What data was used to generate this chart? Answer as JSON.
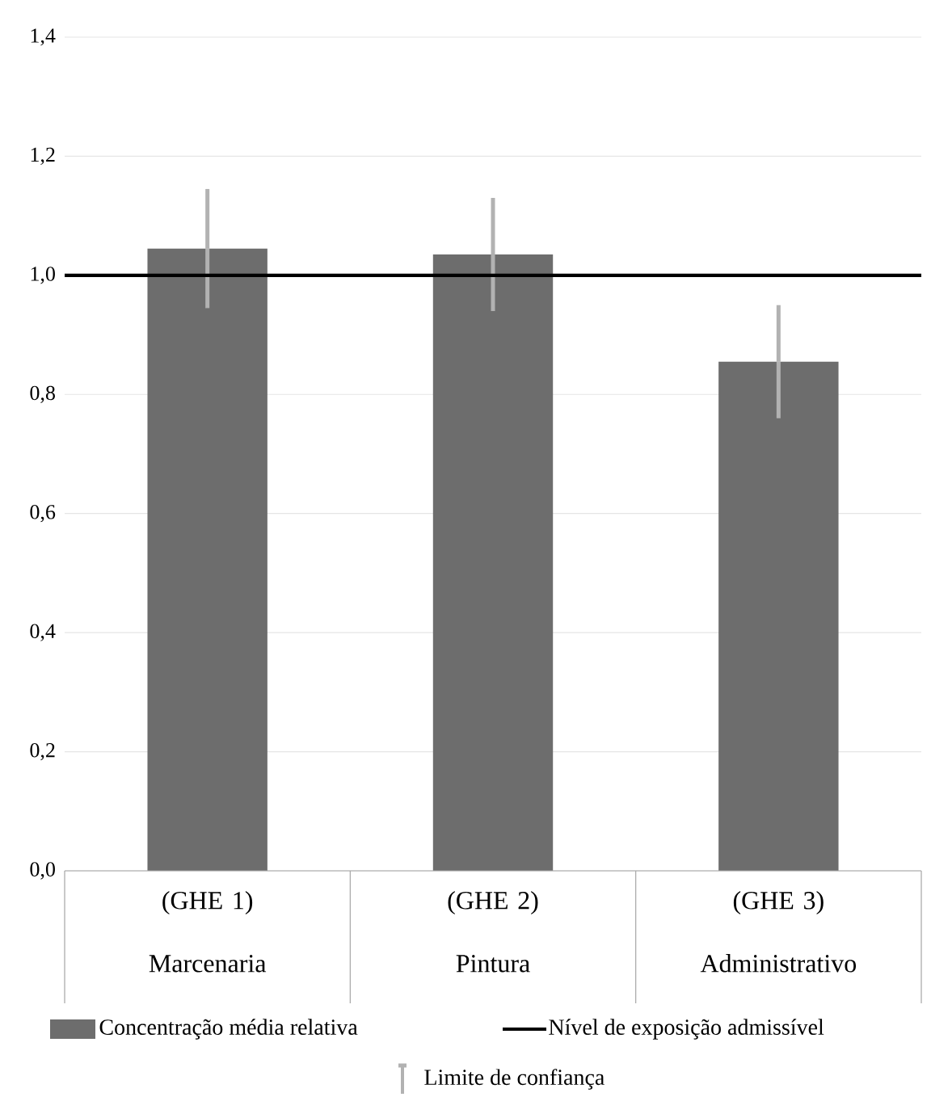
{
  "chart_data": {
    "type": "bar",
    "categories": [
      "(GHE 1) Marcenaria",
      "(GHE 2) Pintura",
      "(GHE 3) Administrativo"
    ],
    "series": [
      {
        "name": "Concentração média relativa",
        "color": "#6d6d6d",
        "values": [
          1.045,
          1.035,
          0.855
        ],
        "errors": [
          0.1,
          0.095,
          0.095
        ]
      }
    ],
    "ylim": [
      0,
      1.4
    ],
    "yticks": [
      {
        "value": 0,
        "label": "0,0"
      },
      {
        "value": 0.2,
        "label": "0,2"
      },
      {
        "value": 0.4,
        "label": "0,4"
      },
      {
        "value": 0.6,
        "label": "0,6"
      },
      {
        "value": 0.8,
        "label": "0,8"
      },
      {
        "value": 1.0,
        "label": "1,0"
      },
      {
        "value": 1.2,
        "label": "1,2"
      },
      {
        "value": 1.4,
        "label": "1,4"
      }
    ],
    "ref_lines": [
      {
        "axis": "y",
        "value": 1.0,
        "label": "Nível de exposição admissível",
        "color": "#000000",
        "line_style": "solid"
      }
    ],
    "annotations": [
      "Limite de confiança"
    ],
    "grid": "y",
    "legend": "bottom"
  }
}
